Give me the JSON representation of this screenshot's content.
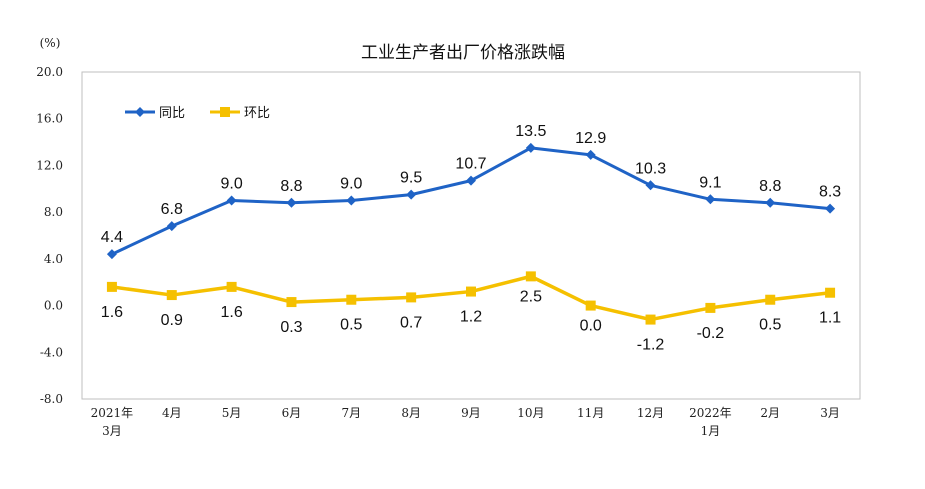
{
  "chart_data": {
    "type": "line",
    "title": "工业生产者出厂价格涨跌幅",
    "ylabel": "(%)",
    "ylim": [
      -8.0,
      20.0
    ],
    "yticks": [
      "20.0",
      "16.0",
      "12.0",
      "8.0",
      "4.0",
      "0.0",
      "-4.0",
      "-8.0"
    ],
    "categories": [
      [
        "2021年",
        "3月"
      ],
      [
        "4月"
      ],
      [
        "5月"
      ],
      [
        "6月"
      ],
      [
        "7月"
      ],
      [
        "8月"
      ],
      [
        "9月"
      ],
      [
        "10月"
      ],
      [
        "11月"
      ],
      [
        "12月"
      ],
      [
        "2022年",
        "1月"
      ],
      [
        "2月"
      ],
      [
        "3月"
      ]
    ],
    "series": [
      {
        "name": "同比",
        "color": "#1f63c6",
        "marker": "diamond",
        "values": [
          4.4,
          6.8,
          9.0,
          8.8,
          9.0,
          9.5,
          10.7,
          13.5,
          12.9,
          10.3,
          9.1,
          8.8,
          8.3
        ],
        "labels": [
          "4.4",
          "6.8",
          "9.0",
          "8.8",
          "9.0",
          "9.5",
          "10.7",
          "13.5",
          "12.9",
          "10.3",
          "9.1",
          "8.8",
          "8.3"
        ]
      },
      {
        "name": "环比",
        "color": "#f5c000",
        "marker": "square",
        "values": [
          1.6,
          0.9,
          1.6,
          0.3,
          0.5,
          0.7,
          1.2,
          2.5,
          0.0,
          -1.2,
          -0.2,
          0.5,
          1.1
        ],
        "labels": [
          "1.6",
          "0.9",
          "1.6",
          "0.3",
          "0.5",
          "0.7",
          "1.2",
          "2.5",
          "0.0",
          "-1.2",
          "-0.2",
          "0.5",
          "1.1"
        ]
      }
    ],
    "legend_position": "top-left",
    "grid": false
  }
}
